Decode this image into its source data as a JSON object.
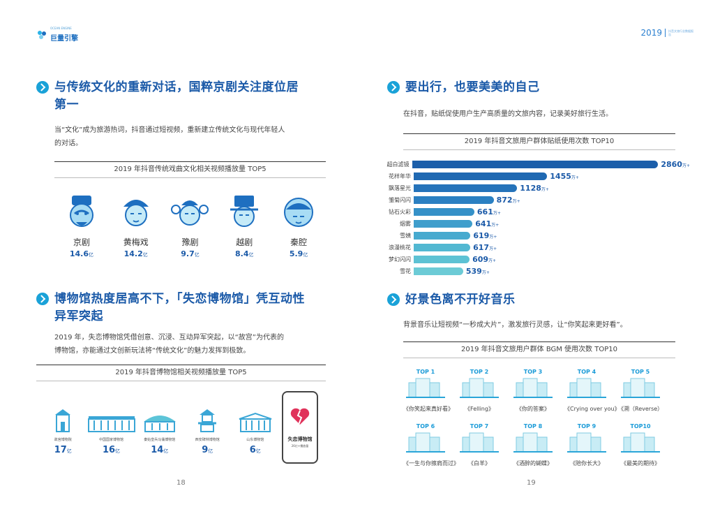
{
  "header": {
    "logo_text": "巨量引擎",
    "logo_sub": "OCEAN ENGINE",
    "year": "2019",
    "sub_text": "抖音文旅行业数据报告"
  },
  "left": {
    "sec1": {
      "title_line1": "与传统文化的重新对话，国粹京剧关注度位居",
      "title_line2": "第一",
      "para_line1": "当“文化”成为旅游热词，抖音通过短视频，重新建立传统文化与现代年轻人",
      "para_line2": "的对话。",
      "table_title": "2019 年抖音传统戏曲文化相关视频播放量 TOP5",
      "items": [
        {
          "name": "京剧",
          "value": "14.6",
          "unit": "亿"
        },
        {
          "name": "黄梅戏",
          "value": "14.2",
          "unit": "亿"
        },
        {
          "name": "豫剧",
          "value": "9.7",
          "unit": "亿"
        },
        {
          "name": "越剧",
          "value": "8.4",
          "unit": "亿"
        },
        {
          "name": "秦腔",
          "value": "5.9",
          "unit": "亿"
        }
      ]
    },
    "sec2": {
      "title_line1": "博物馆热度居高不下，「失恋博物馆」凭互动性",
      "title_line2": "异军突起",
      "para_line1": "2019 年，失恋博物馆凭借创意、沉浸、互动异军突起，以“故宫”为代表的",
      "para_line2": "博物馆，亦能通过文创新玩法将“传统文化”的魅力发挥到极致。",
      "table_title": "2019 年抖音博物馆相关视频播放量 TOP5",
      "items": [
        {
          "name": "故宫博物院",
          "value": "17",
          "unit": "亿"
        },
        {
          "name": "中国国家博物馆",
          "value": "16",
          "unit": "亿"
        },
        {
          "name": "秦始皇兵马俑博物馆",
          "value": "14",
          "unit": "亿"
        },
        {
          "name": "西安碑林博物馆",
          "value": "9",
          "unit": "亿"
        },
        {
          "name": "山东博物馆",
          "value": "6",
          "unit": "亿"
        }
      ],
      "phone_name": "失恋博物馆",
      "phone_sub": "26亿+播放量"
    },
    "page_num": "18"
  },
  "right": {
    "sec1": {
      "title": "要出行，也要美美的自己",
      "para": "在抖音，贴纸促使用户生产高质量的文旅内容，记录美好旅行生活。",
      "table_title": "2019 年抖音文旅用户群体贴纸使用次数 TOP10"
    },
    "chart_data": {
      "type": "bar",
      "orientation": "horizontal",
      "unit": "万+",
      "categories": [
        "超白滤镜",
        "花样年华",
        "飘落星光",
        "雏菊闪闪",
        "钻石火彩",
        "烟雾",
        "雪姨",
        "浪漫桃花",
        "梦幻闪闪",
        "雪花"
      ],
      "values": [
        2860,
        1455,
        1128,
        872,
        661,
        641,
        619,
        617,
        609,
        539
      ],
      "colors": [
        "#1c5faa",
        "#2069b2",
        "#2573ba",
        "#2b80c2",
        "#3591c8",
        "#3f9ecc",
        "#47aacf",
        "#52b8d2",
        "#5dc2d4",
        "#6ccbd6"
      ]
    },
    "sec2": {
      "title": "好景色离不开好音乐",
      "para": "背景音乐让短视频“一秒成大片”，激发旅行灵感，让“你笑起来更好看”。",
      "table_title": "2019 年抖音文旅用户群体 BGM 使用次数 TOP10",
      "items": [
        {
          "rank": "TOP 1",
          "song": "《你笑起来真好看》"
        },
        {
          "rank": "TOP 2",
          "song": "《Felling》"
        },
        {
          "rank": "TOP 3",
          "song": "《你的答案》"
        },
        {
          "rank": "TOP 4",
          "song": "《Crying over you》"
        },
        {
          "rank": "TOP 5",
          "song": "《溯（Reverse）"
        },
        {
          "rank": "TOP 6",
          "song": "《一生与你擦肩而过》"
        },
        {
          "rank": "TOP 7",
          "song": "《白羊》"
        },
        {
          "rank": "TOP 8",
          "song": "《酒醉的蝴蝶》"
        },
        {
          "rank": "TOP 9",
          "song": "《陪你长大》"
        },
        {
          "rank": "TOP10",
          "song": "《最美的期待》"
        }
      ]
    },
    "page_num": "19"
  }
}
